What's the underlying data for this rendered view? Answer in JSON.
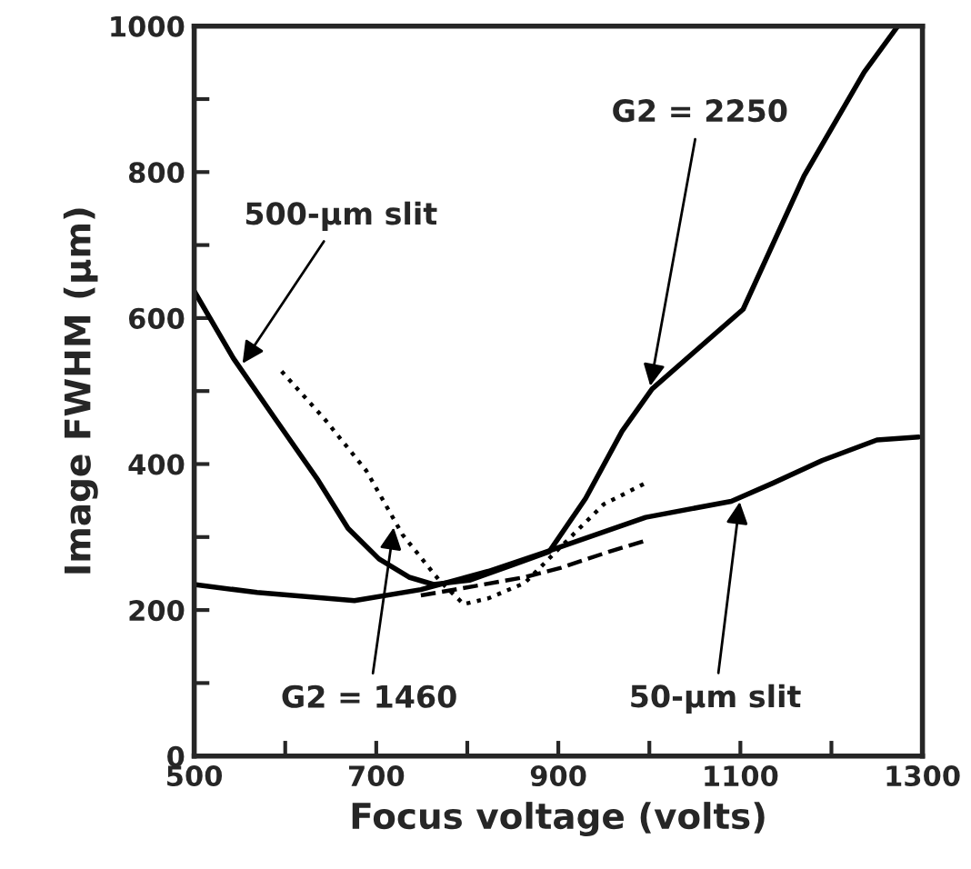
{
  "chart_data": {
    "type": "line",
    "xlabel": "Focus voltage (volts)",
    "ylabel": "Image FWHM (μm)",
    "xlim": [
      500,
      1300
    ],
    "ylim": [
      0,
      1000
    ],
    "xticks": [
      500,
      {
        "value": 600,
        "label": null
      },
      700,
      {
        "value": 800,
        "label": null
      },
      900,
      {
        "value": 1000,
        "label": null
      },
      1100,
      {
        "value": 1200,
        "label": null
      },
      1300
    ],
    "yticks": [
      0,
      {
        "value": 100,
        "label": null
      },
      200,
      {
        "value": 300,
        "label": null
      },
      400,
      {
        "value": 500,
        "label": null
      },
      600,
      {
        "value": 700,
        "label": null
      },
      800,
      {
        "value": 900,
        "label": null
      },
      1000
    ],
    "grid": false,
    "legend": false,
    "marker": "none",
    "series": [
      {
        "color": "#000000",
        "line_style": "solid",
        "x": [
          500,
          543,
          589,
          636,
          669,
          703,
          736,
          763,
          803,
          850,
          890,
          930,
          970,
          1003,
          1103,
          1170,
          1236,
          1273
        ],
        "values": [
          637,
          545,
          462,
          378,
          312,
          270,
          245,
          235,
          241,
          262,
          280,
          353,
          445,
          503,
          612,
          795,
          937,
          1000
        ]
      },
      {
        "color": "#000000",
        "line_style": "solid",
        "x": [
          500,
          569,
          676,
          749,
          823,
          883,
          996,
          1090,
          1136,
          1190,
          1250,
          1296
        ],
        "values": [
          235,
          224,
          213,
          228,
          253,
          278,
          327,
          349,
          374,
          405,
          433,
          437
        ]
      },
      {
        "color": "#000000",
        "line_style": "dotted",
        "x": [
          596,
          643,
          689,
          729,
          769,
          796,
          823,
          863,
          903,
          950,
          996
        ],
        "values": [
          527,
          462,
          391,
          303,
          241,
          208,
          216,
          237,
          287,
          345,
          374
        ]
      },
      {
        "color": "#000000",
        "line_style": "dashed",
        "x": [
          749,
          809,
          863,
          903,
          956,
          996
        ],
        "values": [
          220,
          233,
          245,
          258,
          280,
          295
        ]
      }
    ],
    "annotations": [
      {
        "text": "500-μm slit",
        "x": 550,
        "y": 532
      },
      {
        "text": "G2 = 2250",
        "x": 1000,
        "y": 500
      },
      {
        "text": "G2 = 1460",
        "x": 720,
        "y": 320
      },
      {
        "text": "50-μm slit",
        "x": 1100,
        "y": 355
      }
    ]
  }
}
